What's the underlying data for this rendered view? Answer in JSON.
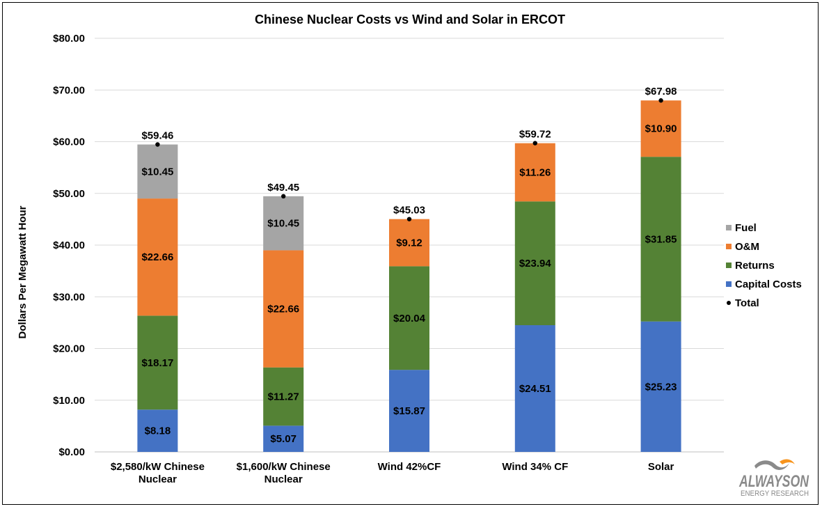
{
  "chart_data": {
    "type": "bar",
    "stacked": true,
    "title": "Chinese Nuclear Costs vs Wind and Solar in ERCOT",
    "ylabel": "Dollars Per Megawatt Hour",
    "xlabel": "",
    "ylim": [
      0,
      80
    ],
    "ytick_step": 10,
    "ytick_labels": [
      "$0.00",
      "$10.00",
      "$20.00",
      "$30.00",
      "$40.00",
      "$50.00",
      "$60.00",
      "$70.00",
      "$80.00"
    ],
    "grid": true,
    "legend_position": "right",
    "categories": [
      [
        "$2,580/kW Chinese",
        "Nuclear"
      ],
      [
        "$1,600/kW Chinese",
        "Nuclear"
      ],
      [
        "Wind 42%CF"
      ],
      [
        "Wind 34% CF"
      ],
      [
        "Solar"
      ]
    ],
    "series": [
      {
        "name": "Capital Costs",
        "color": "#4472C4",
        "values": [
          8.18,
          5.07,
          15.87,
          24.51,
          25.23
        ],
        "labels": [
          "$8.18",
          "$5.07",
          "$15.87",
          "$24.51",
          "$25.23"
        ]
      },
      {
        "name": "Returns",
        "color": "#548235",
        "values": [
          18.17,
          11.27,
          20.04,
          23.94,
          31.85
        ],
        "labels": [
          "$18.17",
          "$11.27",
          "$20.04",
          "$23.94",
          "$31.85"
        ]
      },
      {
        "name": "O&M",
        "color": "#ED7D31",
        "values": [
          22.66,
          22.66,
          9.12,
          11.26,
          10.9
        ],
        "labels": [
          "$22.66",
          "$22.66",
          "$9.12",
          "$11.26",
          "$10.90"
        ]
      },
      {
        "name": "Fuel",
        "color": "#A5A5A5",
        "values": [
          10.45,
          10.45,
          0,
          0,
          0
        ],
        "labels": [
          "$10.45",
          "$10.45",
          "",
          "",
          ""
        ]
      }
    ],
    "total": {
      "name": "Total",
      "values": [
        59.46,
        49.45,
        45.03,
        59.72,
        67.98
      ],
      "labels": [
        "$59.46",
        "$49.45",
        "$45.03",
        "$59.72",
        "$67.98"
      ]
    },
    "legend_order": [
      "Fuel",
      "O&M",
      "Returns",
      "Capital Costs",
      "Total"
    ]
  },
  "logo": {
    "name": "ALWAYS ON",
    "tagline": "ENERGY RESEARCH",
    "accent": "#F7941D"
  }
}
